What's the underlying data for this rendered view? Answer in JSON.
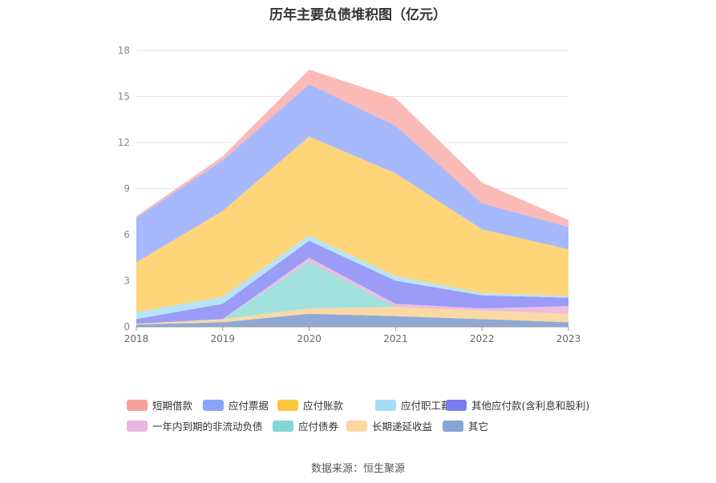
{
  "chart_data": {
    "type": "area",
    "title": "历年主要负债堆积图（亿元）",
    "source": "数据来源：恒生聚源",
    "categories": [
      "2018",
      "2019",
      "2020",
      "2021",
      "2022",
      "2023"
    ],
    "ylim": [
      0,
      18
    ],
    "yticks": [
      "0",
      "3",
      "6",
      "9",
      "12",
      "15",
      "18"
    ],
    "grid": true,
    "legend_position": "bottom",
    "series": [
      {
        "name": "其它",
        "color": "#8fa9d6",
        "values": [
          0.15,
          0.3,
          0.85,
          0.7,
          0.5,
          0.3
        ]
      },
      {
        "name": "长期递延收益",
        "color": "#fbd9a5",
        "values": [
          0.05,
          0.2,
          0.35,
          0.6,
          0.55,
          0.55
        ]
      },
      {
        "name": "应付债券",
        "color": "#a3e1de",
        "values": [
          0,
          0,
          3.05,
          0,
          0,
          0
        ]
      },
      {
        "name": "一年内到期的非流动负债",
        "color": "#ecbde0",
        "values": [
          0,
          0,
          0.25,
          0.2,
          0.15,
          0.5
        ]
      },
      {
        "name": "其他应付款(含利息和股利)",
        "color": "#9a9cf7",
        "values": [
          0.3,
          1.0,
          1.1,
          1.5,
          0.85,
          0.55
        ]
      },
      {
        "name": "应付职工薪酬",
        "color": "#b6e4f9",
        "values": [
          0.45,
          0.45,
          0.35,
          0.3,
          0.15,
          0.1
        ]
      },
      {
        "name": "应付账款",
        "color": "#fed578",
        "values": [
          3.25,
          5.6,
          6.45,
          6.7,
          4.15,
          3.05
        ]
      },
      {
        "name": "应付票据",
        "color": "#a6b9fc",
        "values": [
          2.9,
          3.3,
          3.4,
          3.1,
          1.7,
          1.45
        ]
      },
      {
        "name": "短期借款",
        "color": "#fbbab6",
        "values": [
          0.1,
          0.25,
          0.95,
          1.8,
          1.35,
          0.45
        ]
      }
    ],
    "legend": [
      {
        "name": "短期借款",
        "color": "#f8a19c"
      },
      {
        "name": "应付票据",
        "color": "#87a6fb"
      },
      {
        "name": "应付账款",
        "color": "#fec53e"
      },
      {
        "name": "应付职工薪酬",
        "color": "#a5ddf8"
      },
      {
        "name": "其他应付款(含利息和股利)",
        "color": "#7a7cf1"
      },
      {
        "name": "一年内到期的非流动负债",
        "color": "#e8b6dc"
      },
      {
        "name": "应付债券",
        "color": "#82d6d4"
      },
      {
        "name": "长期递延收益",
        "color": "#fcd79f"
      },
      {
        "name": "其它",
        "color": "#86a4d4"
      }
    ]
  }
}
